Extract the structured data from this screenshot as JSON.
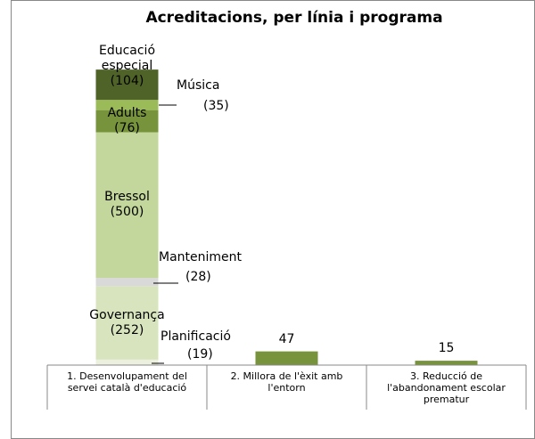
{
  "chart_data": {
    "type": "stacked_bar",
    "title": "Acreditacions, per línia i programa",
    "categories": [
      "1. Desenvolupament del servei català d'educació",
      "2. Millora de l'èxit amb l'entorn",
      "3. Reducció de l'abandonament escolar prematur"
    ],
    "series": [
      {
        "name": "Planificació",
        "color": "#ebf1de",
        "values": [
          19,
          null,
          null
        ],
        "value_labels": [
          "(19)",
          null,
          null
        ]
      },
      {
        "name": "Governança",
        "color": "#d7e4bd",
        "values": [
          252,
          null,
          null
        ],
        "value_labels": [
          "(252)",
          null,
          null
        ]
      },
      {
        "name": "Manteniment",
        "color": "#d9d9d9",
        "values": [
          28,
          null,
          null
        ],
        "value_labels": [
          "(28)",
          null,
          null
        ]
      },
      {
        "name": "Bressol",
        "color": "#c3d69b",
        "values": [
          500,
          null,
          null
        ],
        "value_labels": [
          "(500)",
          null,
          null
        ]
      },
      {
        "name": "Adults",
        "color": "#77933c",
        "values": [
          76,
          null,
          null
        ],
        "value_labels": [
          "(76)",
          null,
          null
        ]
      },
      {
        "name": "Música",
        "color": "#9bbb59",
        "values": [
          35,
          null,
          null
        ],
        "value_labels": [
          "(35)",
          null,
          null
        ]
      },
      {
        "name": "Educació especial",
        "color": "#4f6228",
        "values": [
          104,
          null,
          null
        ],
        "value_labels": [
          "(104)",
          null,
          null
        ]
      },
      {
        "color": "#77933c",
        "values": [
          null,
          47,
          15
        ]
      }
    ],
    "ylim": [
      0,
      1100
    ]
  }
}
